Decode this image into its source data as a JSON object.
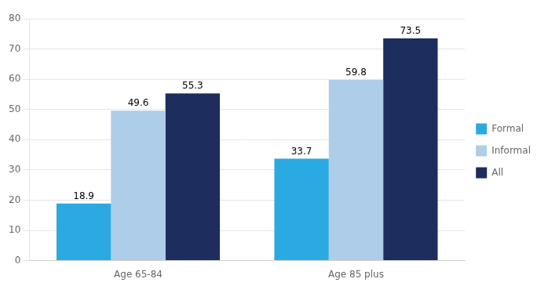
{
  "chart_data": {
    "type": "bar",
    "categories": [
      "Age 65-84",
      "Age 85 plus"
    ],
    "series": [
      {
        "name": "Formal",
        "values": [
          18.9,
          33.7
        ],
        "color": "#2BAAE2"
      },
      {
        "name": "Informal",
        "values": [
          49.6,
          59.8
        ],
        "color": "#AECDE8"
      },
      {
        "name": "All",
        "values": [
          55.3,
          73.5
        ],
        "color": "#1C2D5E"
      }
    ],
    "ylim": [
      0,
      80
    ],
    "yticks": [
      0,
      10,
      20,
      30,
      40,
      50,
      60,
      70,
      80
    ],
    "grid": true,
    "legend": "right",
    "data_labels": true
  }
}
